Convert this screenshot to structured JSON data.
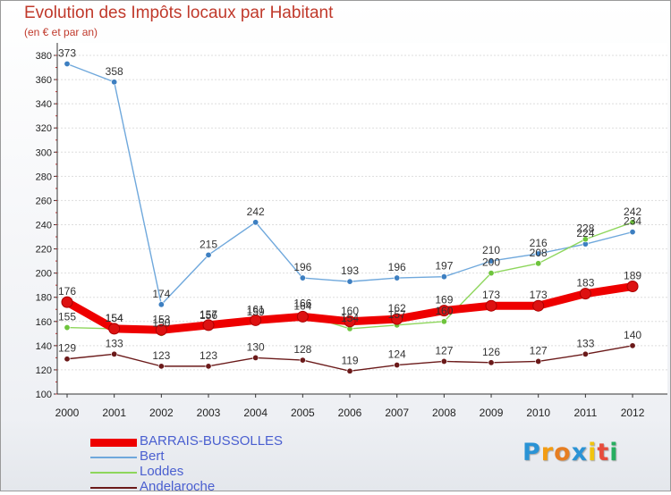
{
  "header": {
    "title": "Evolution des Impôts locaux par Habitant",
    "subtitle": "(en € et par an)"
  },
  "brand": {
    "letters": [
      "P",
      "r",
      "o",
      "x",
      "i",
      "t",
      "i"
    ],
    "colors": [
      "#2a93d5",
      "#f39c12",
      "#e67e22",
      "#2a93d5",
      "#f1c40f",
      "#e74c3c",
      "#27ae60"
    ]
  },
  "chart_data": {
    "type": "line",
    "title": "Evolution des Impôts locaux par Habitant",
    "subtitle": "(en € et par an)",
    "x": [
      2000,
      2001,
      2002,
      2003,
      2004,
      2005,
      2006,
      2007,
      2008,
      2009,
      2010,
      2011,
      2012
    ],
    "ylim": [
      100,
      380
    ],
    "yticks": [
      100,
      120,
      140,
      160,
      180,
      200,
      220,
      240,
      260,
      280,
      300,
      320,
      340,
      360,
      380
    ],
    "grid": "horizontal",
    "legend_position": "bottom-left",
    "series": [
      {
        "name": "BARRAIS-BUSSOLLES",
        "color": "#ee0000",
        "marker": "#dd1111",
        "emphasis": true,
        "values": [
          176,
          154,
          153,
          157,
          161,
          164,
          160,
          162,
          169,
          173,
          173,
          183,
          189
        ]
      },
      {
        "name": "Bert",
        "color": "#6fa8dc",
        "marker": "#3d7fc1",
        "values": [
          373,
          358,
          174,
          215,
          242,
          196,
          193,
          196,
          197,
          210,
          216,
          224,
          234
        ]
      },
      {
        "name": "Loddes",
        "color": "#8ed65c",
        "marker": "#6ec43c",
        "values": [
          155,
          154,
          150,
          156,
          159,
          166,
          154,
          157,
          160,
          200,
          208,
          228,
          242
        ]
      },
      {
        "name": "Andelaroche",
        "color": "#6b1a1a",
        "marker": "#6b1a1a",
        "values": [
          129,
          133,
          123,
          123,
          130,
          128,
          119,
          124,
          127,
          126,
          127,
          133,
          140
        ]
      }
    ]
  }
}
